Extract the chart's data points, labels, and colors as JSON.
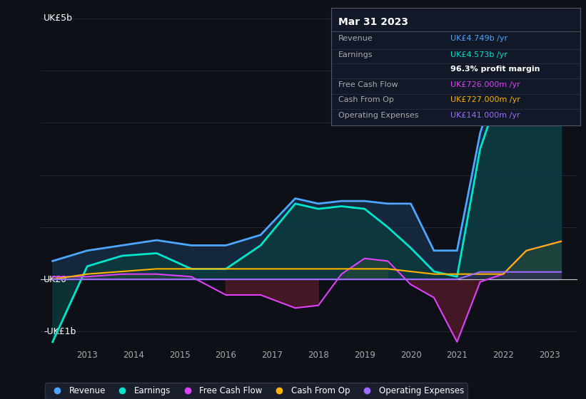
{
  "background_color": "#0d1117",
  "plot_bg_color": "#0d1117",
  "years": [
    2012.25,
    2013.0,
    2013.75,
    2014.5,
    2015.25,
    2016.0,
    2016.75,
    2017.5,
    2018.0,
    2018.5,
    2019.0,
    2019.5,
    2020.0,
    2020.5,
    2021.0,
    2021.5,
    2022.0,
    2022.5,
    2023.25
  ],
  "revenue": [
    0.35,
    0.55,
    0.65,
    0.75,
    0.65,
    0.65,
    0.85,
    1.55,
    1.45,
    1.5,
    1.5,
    1.45,
    1.45,
    0.55,
    0.55,
    2.8,
    4.2,
    3.8,
    4.749
  ],
  "earnings": [
    -1.2,
    0.25,
    0.45,
    0.5,
    0.2,
    0.2,
    0.65,
    1.45,
    1.35,
    1.4,
    1.35,
    1.0,
    0.6,
    0.15,
    0.05,
    2.5,
    3.8,
    3.3,
    4.573
  ],
  "free_cash_flow": [
    0.05,
    0.05,
    0.1,
    0.1,
    0.05,
    -0.3,
    -0.3,
    -0.55,
    -0.5,
    0.1,
    0.4,
    0.35,
    -0.1,
    -0.35,
    -1.2,
    -0.05,
    0.1,
    0.55,
    0.726
  ],
  "cash_from_op": [
    0.0,
    0.1,
    0.15,
    0.2,
    0.2,
    0.2,
    0.2,
    0.2,
    0.2,
    0.2,
    0.2,
    0.2,
    0.15,
    0.1,
    0.1,
    0.1,
    0.1,
    0.55,
    0.727
  ],
  "operating_expenses": [
    0.0,
    0.0,
    0.0,
    0.0,
    0.0,
    0.0,
    0.0,
    0.0,
    0.0,
    0.0,
    0.0,
    0.0,
    0.0,
    0.0,
    0.0,
    0.141,
    0.141,
    0.141,
    0.141
  ],
  "revenue_color": "#4da6ff",
  "earnings_color": "#00e5cc",
  "free_cash_flow_color": "#e040fb",
  "cash_from_op_color": "#ffb300",
  "operating_expenses_color": "#9c6cff",
  "revenue_fill": "#1a3a5c",
  "earnings_fill": "#0a3d3d",
  "ylim": [
    -1.3,
    5.2
  ],
  "xtick_years": [
    2013,
    2014,
    2015,
    2016,
    2017,
    2018,
    2019,
    2020,
    2021,
    2022,
    2023
  ],
  "grid_color": "#2a2a3a",
  "zero_line_color": "#cccccc",
  "box_date": "Mar 31 2023",
  "box_rows": [
    {
      "label": "Revenue",
      "value": "UK£4.749b /yr",
      "value_color": "#4da6ff"
    },
    {
      "label": "Earnings",
      "value": "UK£4.573b /yr",
      "value_color": "#00e5cc"
    },
    {
      "label": "",
      "value": "96.3% profit margin",
      "value_color": "#ffffff"
    },
    {
      "label": "Free Cash Flow",
      "value": "UK£726.000m /yr",
      "value_color": "#e040fb"
    },
    {
      "label": "Cash From Op",
      "value": "UK£727.000m /yr",
      "value_color": "#ffb300"
    },
    {
      "label": "Operating Expenses",
      "value": "UK£141.000m /yr",
      "value_color": "#9c6cff"
    }
  ],
  "legend": [
    {
      "label": "Revenue",
      "color": "#4da6ff"
    },
    {
      "label": "Earnings",
      "color": "#00e5cc"
    },
    {
      "label": "Free Cash Flow",
      "color": "#e040fb"
    },
    {
      "label": "Cash From Op",
      "color": "#ffb300"
    },
    {
      "label": "Operating Expenses",
      "color": "#9c6cff"
    }
  ]
}
